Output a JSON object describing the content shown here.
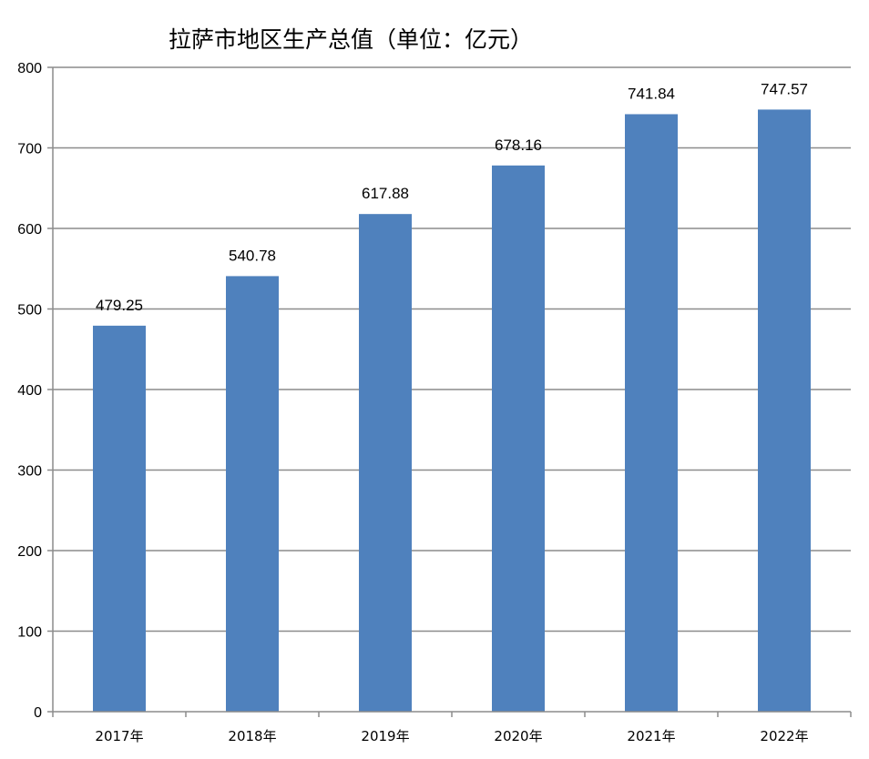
{
  "chart_data": {
    "type": "bar",
    "title": "拉萨市地区生产总值（单位：亿元）",
    "categories": [
      "2017年",
      "2018年",
      "2019年",
      "2020年",
      "2021年",
      "2022年"
    ],
    "values": [
      479.25,
      540.78,
      617.88,
      678.16,
      741.84,
      747.57
    ],
    "data_labels": [
      "479.25",
      "540.78",
      "617.88",
      "678.16",
      "741.84",
      "747.57"
    ],
    "yticks": [
      "0",
      "100",
      "200",
      "300",
      "400",
      "500",
      "600",
      "700",
      "800"
    ],
    "ylim": [
      0,
      800
    ],
    "grid": true,
    "legend": "none",
    "bar_color": "#4f81bd",
    "grid_color": "#8c8c8c"
  }
}
